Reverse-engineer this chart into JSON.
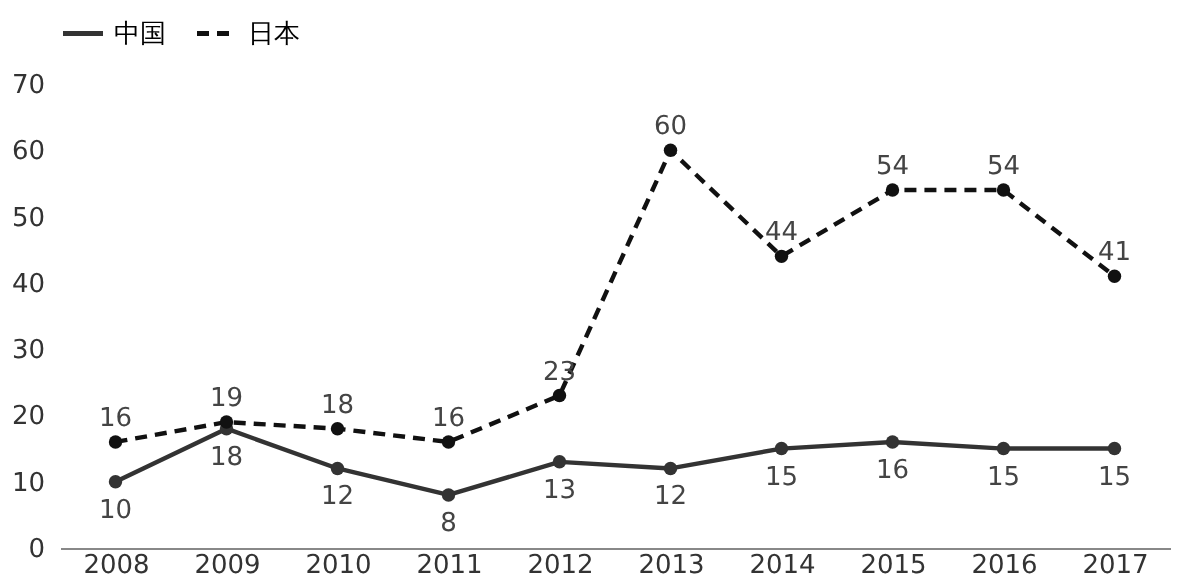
{
  "chart_data": {
    "type": "line",
    "categories": [
      "2008",
      "2009",
      "2010",
      "2011",
      "2012",
      "2013",
      "2014",
      "2015",
      "2016",
      "2017"
    ],
    "series": [
      {
        "name": "中国",
        "color": "#333333",
        "line_style": "solid",
        "values": [
          10,
          18,
          12,
          8,
          13,
          12,
          15,
          16,
          15,
          15
        ]
      },
      {
        "name": "日本",
        "color": "#111111",
        "line_style": "dashed",
        "values": [
          16,
          19,
          18,
          16,
          23,
          60,
          44,
          54,
          54,
          41
        ]
      }
    ],
    "ylim": [
      0,
      70
    ],
    "yticks": [
      0,
      10,
      20,
      30,
      40,
      50,
      60,
      70
    ],
    "grid": false,
    "legend": "top",
    "marker": "circle",
    "data_labels": true
  }
}
